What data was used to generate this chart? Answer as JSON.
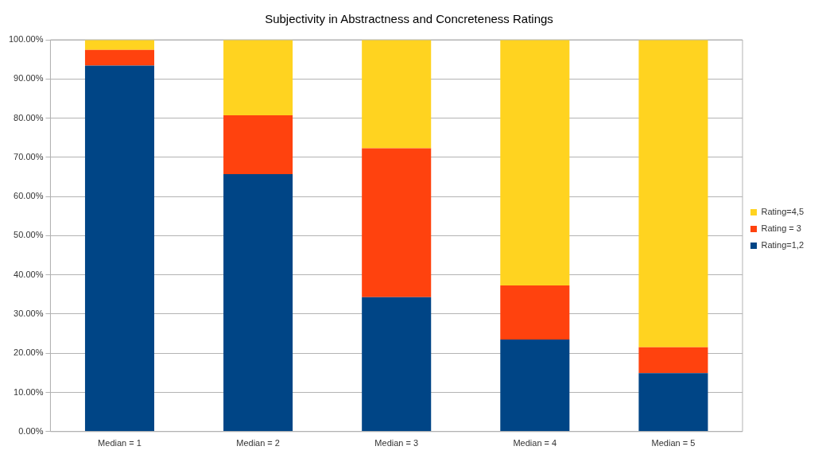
{
  "chart_data": {
    "type": "bar",
    "title": "Subjectivity in Abstractness and Concreteness Ratings",
    "categories": [
      "Median = 1",
      "Median = 2",
      "Median = 3",
      "Median = 4",
      "Median = 5"
    ],
    "stacked": true,
    "series": [
      {
        "name": "Rating=1,2",
        "color": "#004586",
        "values": [
          93.4,
          65.7,
          34.3,
          23.5,
          14.9
        ]
      },
      {
        "name": "Rating = 3",
        "color": "#ff420e",
        "values": [
          4.0,
          15.0,
          38.0,
          13.8,
          6.6
        ]
      },
      {
        "name": "Rating=4,5",
        "color": "#ffd320",
        "values": [
          2.6,
          19.3,
          27.7,
          62.7,
          78.5
        ]
      }
    ],
    "ylim": [
      0,
      100
    ],
    "yticks": [
      {
        "value": 0,
        "label": "0.00%"
      },
      {
        "value": 10,
        "label": "10.00%"
      },
      {
        "value": 20,
        "label": "20.00%"
      },
      {
        "value": 30,
        "label": "30.00%"
      },
      {
        "value": 40,
        "label": "40.00%"
      },
      {
        "value": 50,
        "label": "50.00%"
      },
      {
        "value": 60,
        "label": "60.00%"
      },
      {
        "value": 70,
        "label": "70.00%"
      },
      {
        "value": 80,
        "label": "80.00%"
      },
      {
        "value": 90,
        "label": "90.00%"
      },
      {
        "value": 100,
        "label": "100.00%"
      }
    ],
    "grid": "y",
    "legend": "right"
  }
}
